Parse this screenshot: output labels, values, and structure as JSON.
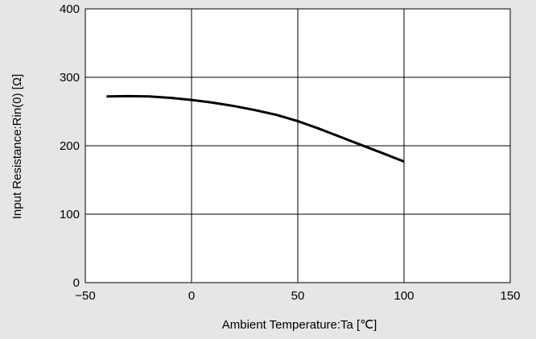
{
  "chart_data": {
    "type": "line",
    "xlabel": "Ambient Temperature:Ta [℃]",
    "ylabel": "Input Resistance:Rin(0) [Ω]",
    "xlim": [
      -50,
      150
    ],
    "ylim": [
      0,
      400
    ],
    "xticks": [
      -50,
      0,
      50,
      100,
      150
    ],
    "yticks": [
      0,
      100,
      200,
      300,
      400
    ],
    "xtick_labels": [
      "−50",
      "0",
      "50",
      "100",
      "150"
    ],
    "ytick_labels": [
      "0",
      "100",
      "200",
      "300",
      "400"
    ],
    "grid": true,
    "series": [
      {
        "x": [
          -40,
          -30,
          -20,
          -10,
          0,
          10,
          20,
          30,
          40,
          50,
          60,
          70,
          80,
          90,
          100
        ],
        "y": [
          272,
          272.5,
          272,
          270,
          267,
          263,
          258,
          252,
          245,
          236,
          225,
          213,
          201,
          189,
          177
        ]
      }
    ]
  },
  "colors": {
    "background": "#e6e6e6",
    "plot_area": "#ffffff",
    "line": "#000000",
    "grid": "#000000"
  }
}
